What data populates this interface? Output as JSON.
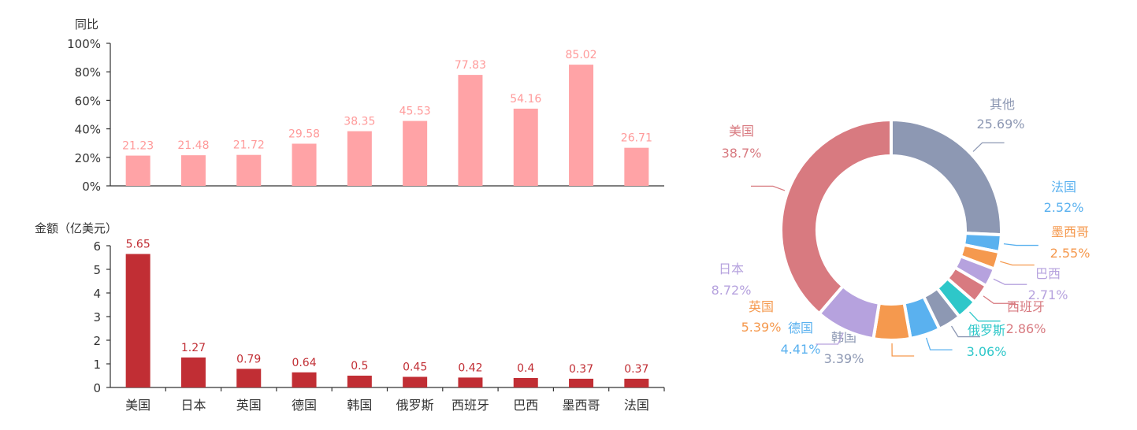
{
  "chart_data": [
    {
      "type": "bar",
      "ylabel": "同比",
      "ylim": [
        0,
        100
      ],
      "y_ticks": [
        "0%",
        "20%",
        "40%",
        "60%",
        "80%",
        "100%"
      ],
      "categories": [
        "美国",
        "日本",
        "英国",
        "德国",
        "韩国",
        "俄罗斯",
        "西班牙",
        "巴西",
        "墨西哥",
        "法国"
      ],
      "values": [
        21.23,
        21.48,
        21.72,
        29.58,
        38.35,
        45.53,
        77.83,
        54.16,
        85.02,
        26.71
      ],
      "labels": [
        "21.23",
        "21.48",
        "21.72",
        "29.58",
        "38.35",
        "45.53",
        "77.83",
        "54.16",
        "85.02",
        "26.71"
      ],
      "color": "#ffa3a6",
      "label_color": "#ff9a9a"
    },
    {
      "type": "bar",
      "ylabel": "金额（亿美元）",
      "ylim": [
        0,
        6
      ],
      "y_ticks": [
        "0",
        "1",
        "2",
        "3",
        "4",
        "5",
        "6"
      ],
      "categories": [
        "美国",
        "日本",
        "英国",
        "德国",
        "韩国",
        "俄罗斯",
        "西班牙",
        "巴西",
        "墨西哥",
        "法国"
      ],
      "values": [
        5.65,
        1.27,
        0.79,
        0.64,
        0.5,
        0.45,
        0.42,
        0.4,
        0.37,
        0.37
      ],
      "labels": [
        "5.65",
        "1.27",
        "0.79",
        "0.64",
        "0.5",
        "0.45",
        "0.42",
        "0.4",
        "0.37",
        "0.37"
      ],
      "color": "#c12e34",
      "label_color": "#c12e34"
    },
    {
      "type": "pie",
      "donut": true,
      "slices": [
        {
          "name": "其他",
          "value": 25.69,
          "label": "25.69%",
          "color": "#8d98b3"
        },
        {
          "name": "法国",
          "value": 2.52,
          "label": "2.52%",
          "color": "#5ab1ef"
        },
        {
          "name": "墨西哥",
          "value": 2.55,
          "label": "2.55%",
          "color": "#f5994e"
        },
        {
          "name": "巴西",
          "value": 2.71,
          "label": "2.71%",
          "color": "#b6a2de"
        },
        {
          "name": "西班牙",
          "value": 2.86,
          "label": "2.86%",
          "color": "#d87a80"
        },
        {
          "name": "俄罗斯",
          "value": 3.06,
          "label": "3.06%",
          "color": "#2ec7c9"
        },
        {
          "name": "韩国",
          "value": 3.39,
          "label": "3.39%",
          "color": "#8d98b3"
        },
        {
          "name": "德国",
          "value": 4.41,
          "label": "4.41%",
          "color": "#5ab1ef"
        },
        {
          "name": "英国",
          "value": 5.39,
          "label": "5.39%",
          "color": "#f5994e"
        },
        {
          "name": "日本",
          "value": 8.72,
          "label": "8.72%",
          "color": "#b6a2de"
        },
        {
          "name": "美国",
          "value": 38.7,
          "label": "38.7%",
          "color": "#d87a80"
        }
      ]
    }
  ]
}
